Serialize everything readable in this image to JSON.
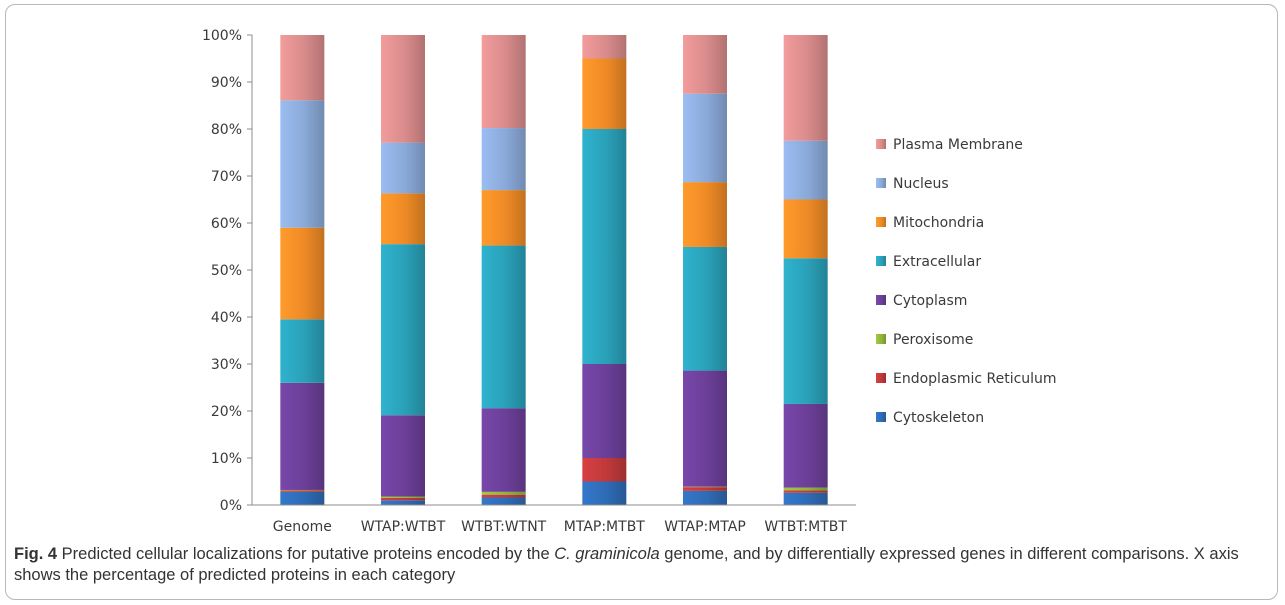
{
  "caption": {
    "label": "Fig. 4",
    "part1": " Predicted cellular localizations for putative proteins encoded by the ",
    "species": "C. graminicola",
    "part2": " genome, and by differentially expressed genes in different comparisons. X axis shows the percentage of predicted proteins in each category"
  },
  "chart_data": {
    "type": "bar",
    "stacked": true,
    "categories": [
      "Genome",
      "WTAP:WTBT",
      "WTBT:WTNT",
      "MTAP:MTBT",
      "WTAP:MTAP",
      "WTBT:MTBT"
    ],
    "y_ticks": [
      "0%",
      "10%",
      "20%",
      "30%",
      "40%",
      "50%",
      "60%",
      "70%",
      "80%",
      "90%",
      "100%"
    ],
    "ylim": [
      0,
      100
    ],
    "grid": false,
    "legend_position": "right",
    "series": [
      {
        "name": "Cytoskeleton",
        "color": "#2e6bb5",
        "values": [
          2.8,
          1.0,
          1.6,
          5.0,
          3.0,
          2.6
        ]
      },
      {
        "name": "Endoplasmic Reticulum",
        "color": "#c0393b",
        "values": [
          0.3,
          0.5,
          0.6,
          5.0,
          0.8,
          0.5
        ]
      },
      {
        "name": "Peroxisome",
        "color": "#8fb43a",
        "values": [
          0.1,
          0.3,
          0.6,
          0.0,
          0.1,
          0.6
        ]
      },
      {
        "name": "Cytoplasm",
        "color": "#6b3f98",
        "values": [
          22.8,
          17.3,
          17.8,
          20.0,
          24.7,
          17.8
        ]
      },
      {
        "name": "Extracellular",
        "color": "#2aa0b8",
        "values": [
          13.5,
          36.4,
          34.6,
          50.0,
          26.3,
          31.0
        ]
      },
      {
        "name": "Mitochondria",
        "color": "#ee8a26",
        "values": [
          19.5,
          10.8,
          11.8,
          15.0,
          13.8,
          12.5
        ]
      },
      {
        "name": "Nucleus",
        "color": "#8aa9d8",
        "values": [
          27.1,
          10.8,
          13.2,
          0.0,
          18.8,
          12.5
        ]
      },
      {
        "name": "Plasma Membrane",
        "color": "#d98b8b",
        "values": [
          13.9,
          22.9,
          19.8,
          5.0,
          12.5,
          22.5
        ]
      }
    ]
  }
}
